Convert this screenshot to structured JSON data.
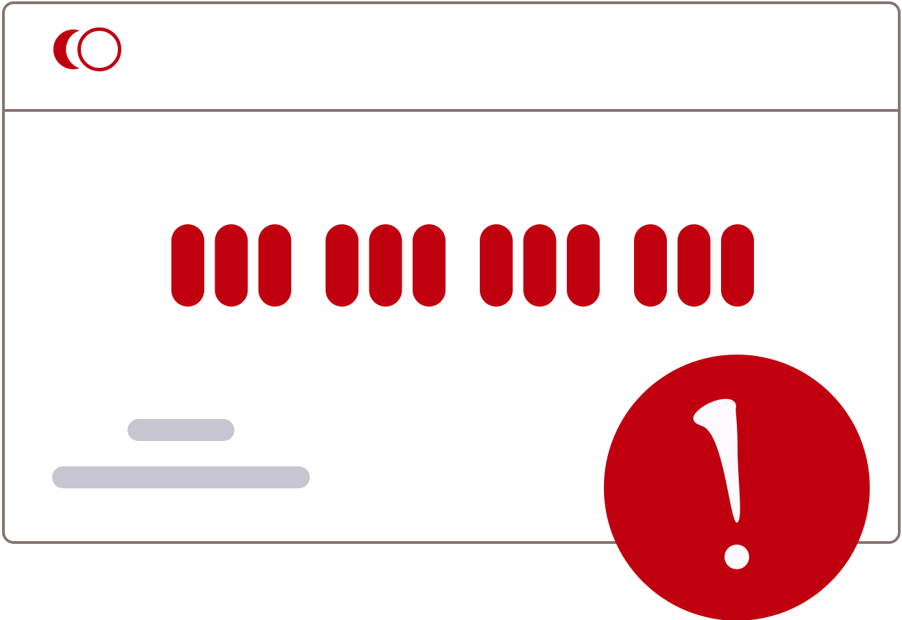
{
  "colors": {
    "card_border": "#857470",
    "brand_red": "#c0000e",
    "placeholder_gray": "#c8c4d0",
    "alert_mark": "#fdfaff",
    "background": "#ffffff"
  },
  "card": {
    "logo_icon": "card-brand-logo",
    "number_groups": 4,
    "digits_per_group": 3,
    "masked": true,
    "placeholder_lines": 2
  },
  "alert": {
    "icon": "exclamation-icon",
    "type": "error"
  }
}
